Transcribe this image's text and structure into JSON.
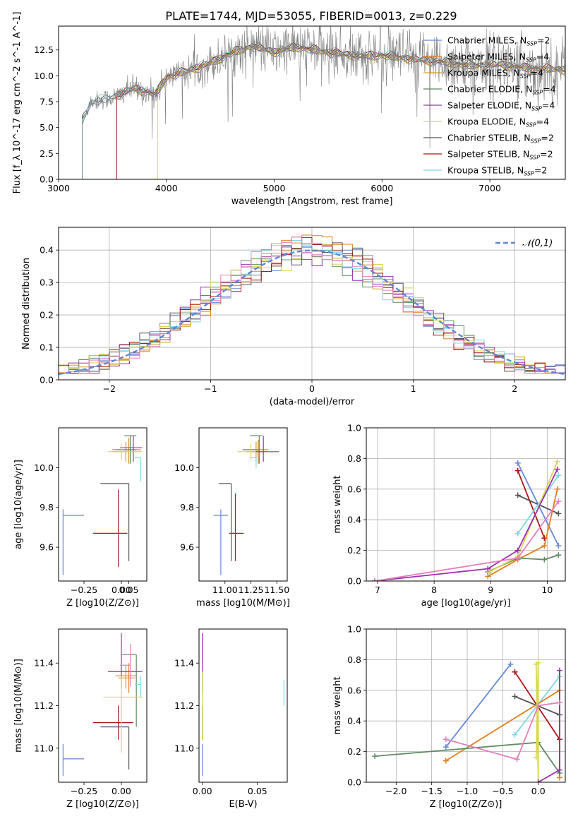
{
  "figure_title": "PLATE=1744, MJD=53055, FIBERID=0013, z=0.229",
  "models": [
    {
      "name": "Chabrier MILES",
      "nssp": "2",
      "color": "#6688d8"
    },
    {
      "name": "Salpeter MILES",
      "nssp": "4",
      "color": "#e07f1c"
    },
    {
      "name": "Kroupa MILES",
      "nssp": "4",
      "color": "#d4a017"
    },
    {
      "name": "Chabrier ELODIE",
      "nssp": "4",
      "color": "#5f8a5f"
    },
    {
      "name": "Salpeter ELODIE",
      "nssp": "4",
      "color": "#9a30b0"
    },
    {
      "name": "Kroupa ELODIE",
      "nssp": "4",
      "color": "#d8d850"
    },
    {
      "name": "Chabrier STELIB",
      "nssp": "2",
      "color": "#555555"
    },
    {
      "name": "Salpeter STELIB",
      "nssp": "2",
      "color": "#aa1515"
    },
    {
      "name": "Kroupa STELIB",
      "nssp": "2",
      "color": "#7fd8e0"
    }
  ],
  "chart_data": [
    {
      "id": "spectrum",
      "type": "line",
      "xlabel": "wavelength [Angstrom, rest frame]",
      "ylabel": "Flux [f_λ 10^-17 erg cm^-2 s^-1 A^-1]",
      "xlim": [
        3000,
        7700
      ],
      "ylim": [
        0,
        14.8
      ],
      "xticks": [
        "3000",
        "4000",
        "5000",
        "6000",
        "7000"
      ],
      "yticks": [
        "0.0",
        "2.5",
        "5.0",
        "7.5",
        "10.0",
        "12.5"
      ],
      "data_color": "#808080",
      "continuum_knots": [
        [
          3220,
          5.7
        ],
        [
          3300,
          7.5
        ],
        [
          3500,
          7.9
        ],
        [
          3700,
          8.8
        ],
        [
          3900,
          8.2
        ],
        [
          4000,
          9.9
        ],
        [
          4200,
          10.5
        ],
        [
          4400,
          11.2
        ],
        [
          4600,
          12.2
        ],
        [
          4800,
          12.9
        ],
        [
          5000,
          12.3
        ],
        [
          5200,
          12.8
        ],
        [
          5500,
          12.3
        ],
        [
          5800,
          11.9
        ],
        [
          6000,
          12.0
        ],
        [
          6300,
          11.6
        ],
        [
          6600,
          11.3
        ],
        [
          6800,
          11.0
        ],
        [
          7100,
          11.1
        ],
        [
          7300,
          10.8
        ],
        [
          7700,
          10.6
        ]
      ],
      "legend_position": "right"
    },
    {
      "id": "residuals",
      "type": "histogram",
      "xlabel": "(data-model)/error",
      "ylabel": "Normed distribution",
      "xlim": [
        -2.5,
        2.5
      ],
      "ylim": [
        0,
        0.47
      ],
      "xticks": [
        "−2",
        "−1",
        "0",
        "1",
        "2"
      ],
      "yticks": [
        "0.0",
        "0.1",
        "0.2",
        "0.3",
        "0.4"
      ],
      "reference_label": "𝒩(0,1)",
      "reference_color": "#5b87d6",
      "grid": true,
      "legend_position": "top-right"
    },
    {
      "id": "age_vs_Z",
      "type": "errorbar",
      "xlabel": "Z [log10(Z/Z⊙)]",
      "ylabel": "age [log10(age/yr)]",
      "xlim": [
        -0.42,
        0.17
      ],
      "ylim": [
        9.43,
        10.2
      ],
      "xticks": [
        "−0.25",
        "0.00",
        "0.05"
      ],
      "yticks": [
        "9.6",
        "9.8",
        "10.0"
      ],
      "points": [
        {
          "model": 0,
          "x": -0.39,
          "y": 9.76,
          "xerr": [
            0.0,
            0.14
          ],
          "yerr": [
            0.3,
            0.03
          ]
        },
        {
          "model": 7,
          "x": -0.02,
          "y": 9.67,
          "xerr": [
            0.17,
            0.06
          ],
          "yerr": [
            0.17,
            0.22
          ]
        },
        {
          "model": 6,
          "x": 0.05,
          "y": 9.92,
          "xerr": [
            0.19,
            0.0
          ],
          "yerr": [
            0.39,
            0.0
          ]
        },
        {
          "model": 1,
          "x": 0.05,
          "y": 10.09,
          "xerr": [
            0.11,
            0.08
          ],
          "yerr": [
            0.07,
            0.06
          ]
        },
        {
          "model": 2,
          "x": 0.03,
          "y": 10.08,
          "xerr": [
            0.09,
            0.1
          ],
          "yerr": [
            0.05,
            0.05
          ]
        },
        {
          "model": 3,
          "x": 0.06,
          "y": 10.09,
          "xerr": [
            0.1,
            0.04
          ],
          "yerr": [
            0.07,
            0.07
          ]
        },
        {
          "model": 4,
          "x": 0.08,
          "y": 10.1,
          "xerr": [
            0.09,
            0.06
          ],
          "yerr": [
            0.07,
            0.06
          ]
        },
        {
          "model": 5,
          "x": 0.0,
          "y": 10.08,
          "xerr": [
            0.09,
            0.14
          ],
          "yerr": [
            0.04,
            0.04
          ]
        },
        {
          "model": 8,
          "x": 0.13,
          "y": 10.05,
          "xerr": [
            0.04,
            0.0
          ],
          "yerr": [
            0.12,
            0.0
          ]
        },
        {
          "model": 3,
          "x": 0.1,
          "y": 10.16,
          "xerr": [
            0.08,
            0.0
          ],
          "yerr": [
            0.0,
            0.0
          ]
        }
      ]
    },
    {
      "id": "age_vs_mass",
      "type": "errorbar",
      "xlabel": "mass [log10(M/M⊙)]",
      "ylabel": "",
      "xlim": [
        10.75,
        11.6
      ],
      "ylim": [
        9.43,
        10.2
      ],
      "xticks": [
        "11.00",
        "11.25",
        "11.50"
      ],
      "yticks": [
        "9.6",
        "9.8",
        "10.0"
      ],
      "points": [
        {
          "model": 0,
          "x": 10.96,
          "y": 9.76,
          "xerr": [
            0.07,
            0.07
          ],
          "yerr": [
            0.3,
            0.03
          ]
        },
        {
          "model": 7,
          "x": 11.1,
          "y": 9.67,
          "xerr": [
            0.06,
            0.08
          ],
          "yerr": [
            0.14,
            0.2
          ]
        },
        {
          "model": 6,
          "x": 11.06,
          "y": 9.92,
          "xerr": [
            0.12,
            0.0
          ],
          "yerr": [
            0.39,
            0.0
          ]
        },
        {
          "model": 1,
          "x": 11.32,
          "y": 10.09,
          "xerr": [
            0.15,
            0.1
          ],
          "yerr": [
            0.07,
            0.05
          ]
        },
        {
          "model": 2,
          "x": 11.3,
          "y": 10.08,
          "xerr": [
            0.1,
            0.1
          ],
          "yerr": [
            0.05,
            0.05
          ]
        },
        {
          "model": 3,
          "x": 11.33,
          "y": 10.09,
          "xerr": [
            0.16,
            0.0
          ],
          "yerr": [
            0.07,
            0.07
          ]
        },
        {
          "model": 4,
          "x": 11.37,
          "y": 10.08,
          "xerr": [
            0.07,
            0.15
          ],
          "yerr": [
            0.05,
            0.08
          ]
        },
        {
          "model": 5,
          "x": 11.25,
          "y": 10.08,
          "xerr": [
            0.13,
            0.0
          ],
          "yerr": [
            0.04,
            0.04
          ]
        },
        {
          "model": 8,
          "x": 11.3,
          "y": 10.05,
          "xerr": [
            0.05,
            0.0
          ],
          "yerr": [
            0.05,
            0.0
          ]
        },
        {
          "model": 3,
          "x": 11.36,
          "y": 10.16,
          "xerr": [
            0.12,
            0.0
          ],
          "yerr": [
            0.0,
            0.0
          ]
        }
      ]
    },
    {
      "id": "weight_vs_age",
      "type": "line",
      "xlabel": "age [log10(age/yr)]",
      "ylabel": "mass weight",
      "xlim": [
        6.8,
        10.32
      ],
      "ylim": [
        0,
        1
      ],
      "xticks": [
        "7",
        "8",
        "9",
        "10"
      ],
      "yticks": [
        "0.0",
        "0.2",
        "0.4",
        "0.6",
        "0.8",
        "1.0"
      ],
      "grid": true,
      "series": [
        {
          "model": 0,
          "x": [
            9.48,
            10.2
          ],
          "y": [
            0.77,
            0.23
          ]
        },
        {
          "model": 7,
          "x": [
            9.48,
            9.95
          ],
          "y": [
            0.72,
            0.28
          ]
        },
        {
          "model": 6,
          "x": [
            9.48,
            10.2
          ],
          "y": [
            0.56,
            0.44
          ]
        },
        {
          "model": 8,
          "x": [
            9.48,
            10.2
          ],
          "y": [
            0.31,
            0.69
          ]
        },
        {
          "model": 1,
          "x": [
            8.95,
            9.48,
            9.95,
            10.18
          ],
          "y": [
            0.03,
            0.14,
            0.23,
            0.6
          ]
        },
        {
          "model": 3,
          "x": [
            8.95,
            9.48,
            9.95,
            10.2
          ],
          "y": [
            0.06,
            0.15,
            0.14,
            0.17
          ]
        },
        {
          "model": 5,
          "x": [
            8.98,
            9.48,
            10.18
          ],
          "y": [
            0.06,
            0.16,
            0.78
          ]
        },
        {
          "model": 4,
          "x": [
            6.95,
            8.95,
            9.48,
            10.18
          ],
          "y": [
            0.0,
            0.08,
            0.2,
            0.73
          ]
        },
        {
          "model": 9,
          "x": [
            6.95,
            9.48,
            10.2
          ],
          "y": [
            0.0,
            0.15,
            0.52
          ]
        }
      ],
      "extra_colors": {
        "9": "#e27fbf"
      }
    },
    {
      "id": "mass_vs_Z",
      "type": "errorbar",
      "xlabel": "Z [log10(Z/Z⊙)]",
      "ylabel": "mass [log10(M/M⊙)]",
      "xlim": [
        -0.42,
        0.17
      ],
      "ylim": [
        10.84,
        11.56
      ],
      "xticks": [
        "−0.25",
        "0.00"
      ],
      "yticks": [
        "11.0",
        "11.2",
        "11.4"
      ],
      "points": [
        {
          "model": 0,
          "x": -0.39,
          "y": 10.95,
          "xerr": [
            0.0,
            0.14
          ],
          "yerr": [
            0.08,
            0.07
          ]
        },
        {
          "model": 7,
          "x": -0.02,
          "y": 11.12,
          "xerr": [
            0.17,
            0.1
          ],
          "yerr": [
            0.08,
            0.08
          ]
        },
        {
          "model": 6,
          "x": 0.05,
          "y": 11.1,
          "xerr": [
            0.19,
            0.0
          ],
          "yerr": [
            0.2,
            0.0
          ]
        },
        {
          "model": 1,
          "x": 0.05,
          "y": 11.34,
          "xerr": [
            0.09,
            0.05
          ],
          "yerr": [
            0.08,
            0.06
          ]
        },
        {
          "model": 2,
          "x": 0.03,
          "y": 11.33,
          "xerr": [
            0.05,
            0.06
          ],
          "yerr": [
            0.05,
            0.06
          ]
        },
        {
          "model": 3,
          "x": 0.1,
          "y": 11.44,
          "xerr": [
            0.1,
            0.0
          ],
          "yerr": [
            0.34,
            0.0
          ]
        },
        {
          "model": 4,
          "x": 0.0,
          "y": 11.36,
          "xerr": [
            0.09,
            0.14
          ],
          "yerr": [
            0.08,
            0.18
          ]
        },
        {
          "model": 5,
          "x": 0.0,
          "y": 11.24,
          "xerr": [
            0.12,
            0.14
          ],
          "yerr": [
            0.26,
            0.1
          ]
        },
        {
          "model": 8,
          "x": 0.13,
          "y": 11.3,
          "xerr": [
            0.04,
            0.0
          ],
          "yerr": [
            0.06,
            0.04
          ]
        },
        {
          "model": 9,
          "x": 0.06,
          "y": 11.39,
          "xerr": [
            0.07,
            0.0
          ],
          "yerr": [
            0.1,
            0.1
          ]
        }
      ],
      "extra_colors": {
        "9": "#e27fbf"
      }
    },
    {
      "id": "mass_vs_ebv",
      "type": "errorbar",
      "xlabel": "E(B-V)",
      "ylabel": "",
      "xlim": [
        -0.003,
        0.077
      ],
      "ylim": [
        10.84,
        11.56
      ],
      "xticks": [
        "0.00",
        "0.05"
      ],
      "yticks": [
        "11.0",
        "11.2",
        "11.4"
      ],
      "points": [
        {
          "model": 0,
          "x": 0.0,
          "y": 10.95,
          "xerr": [
            0,
            0
          ],
          "yerr": [
            0.08,
            0.07
          ]
        },
        {
          "model": 7,
          "x": 0.0,
          "y": 11.12,
          "xerr": [
            0,
            0
          ],
          "yerr": [
            0.08,
            0.08
          ]
        },
        {
          "model": 4,
          "x": 0.0,
          "y": 11.36,
          "xerr": [
            0,
            0
          ],
          "yerr": [
            0.1,
            0.18
          ]
        },
        {
          "model": 5,
          "x": 0.0,
          "y": 11.24,
          "xerr": [
            0,
            0
          ],
          "yerr": [
            0.2,
            0.12
          ]
        },
        {
          "model": 8,
          "x": 0.074,
          "y": 11.26,
          "xerr": [
            0,
            0
          ],
          "yerr": [
            0.06,
            0.06
          ]
        }
      ]
    },
    {
      "id": "weight_vs_Z",
      "type": "line",
      "xlabel": "Z [log10(Z/Z⊙)]",
      "ylabel": "mass weight",
      "xlim": [
        -2.42,
        0.38
      ],
      "ylim": [
        0,
        1
      ],
      "xticks": [
        "−2.0",
        "−1.5",
        "−1.0",
        "−0.5",
        "0.0"
      ],
      "yticks": [
        "0.0",
        "0.2",
        "0.4",
        "0.6",
        "0.8",
        "1.0"
      ],
      "grid": true,
      "series": [
        {
          "model": 0,
          "x": [
            -1.3,
            -0.39
          ],
          "y": [
            0.23,
            0.77
          ]
        },
        {
          "model": 7,
          "x": [
            -0.33,
            0.3
          ],
          "y": [
            0.72,
            0.28
          ]
        },
        {
          "model": 6,
          "x": [
            -0.33,
            0.3
          ],
          "y": [
            0.56,
            0.44
          ]
        },
        {
          "model": 8,
          "x": [
            -0.33,
            0.3
          ],
          "y": [
            0.31,
            0.69
          ]
        },
        {
          "model": 1,
          "x": [
            -1.3,
            0.3,
            0.3
          ],
          "y": [
            0.14,
            0.6,
            0.03
          ]
        },
        {
          "model": 3,
          "x": [
            -2.3,
            -0.0,
            0.3,
            0.3
          ],
          "y": [
            0.17,
            0.26,
            0.06,
            0.52
          ]
        },
        {
          "model": 5,
          "x": [
            -0.03,
            0.0,
            0.0,
            -0.03
          ],
          "y": [
            0.16,
            0.78,
            0.0,
            0.77
          ]
        },
        {
          "model": 4,
          "x": [
            0.0,
            0.3,
            0.3
          ],
          "y": [
            0.0,
            0.08,
            0.73
          ]
        },
        {
          "model": 9,
          "x": [
            -1.3,
            -0.3,
            0.0,
            0.3
          ],
          "y": [
            0.28,
            0.15,
            0.5,
            0.52
          ]
        }
      ],
      "extra_colors": {
        "9": "#e27fbf"
      }
    }
  ]
}
